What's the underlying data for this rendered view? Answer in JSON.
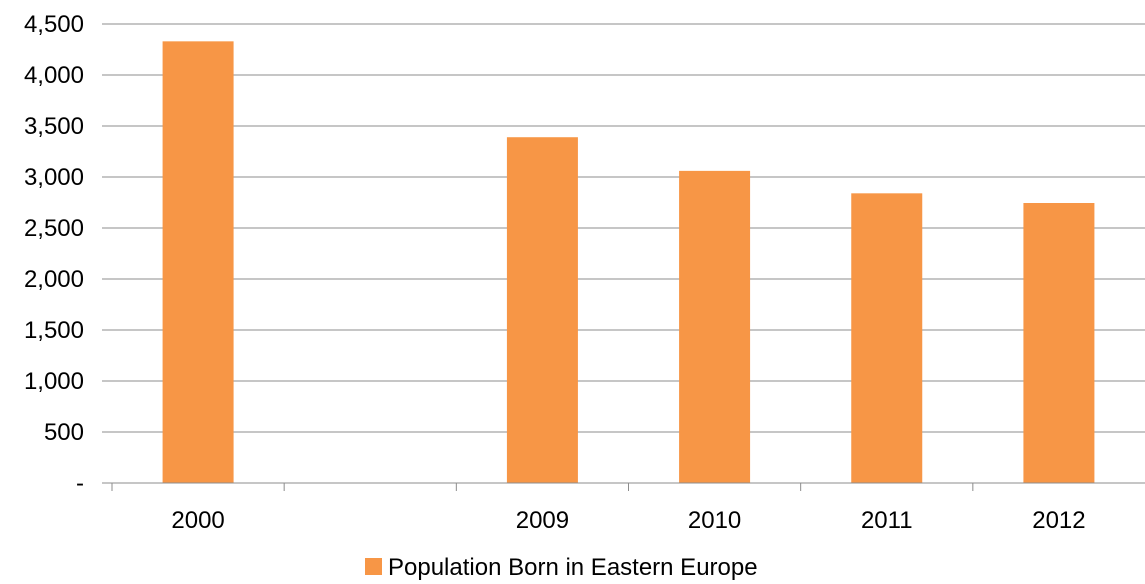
{
  "chart_data": {
    "type": "bar",
    "categories": [
      "2000",
      "",
      "2009",
      "2010",
      "2011",
      "2012"
    ],
    "series": [
      {
        "name": "Population Born in Eastern Europe",
        "values": [
          4330,
          null,
          3390,
          3060,
          2840,
          2745
        ],
        "color": "#F79646"
      }
    ],
    "ylim": [
      0,
      4500
    ],
    "yticks": [
      0,
      500,
      1000,
      1500,
      2000,
      2500,
      3000,
      3500,
      4000,
      4500
    ],
    "ytick_labels": [
      "-",
      "500",
      "1,000",
      "1,500",
      "2,000",
      "2,500",
      "3,000",
      "3,500",
      "4,000",
      "4,500"
    ],
    "grid": true,
    "legend_position": "bottom"
  }
}
